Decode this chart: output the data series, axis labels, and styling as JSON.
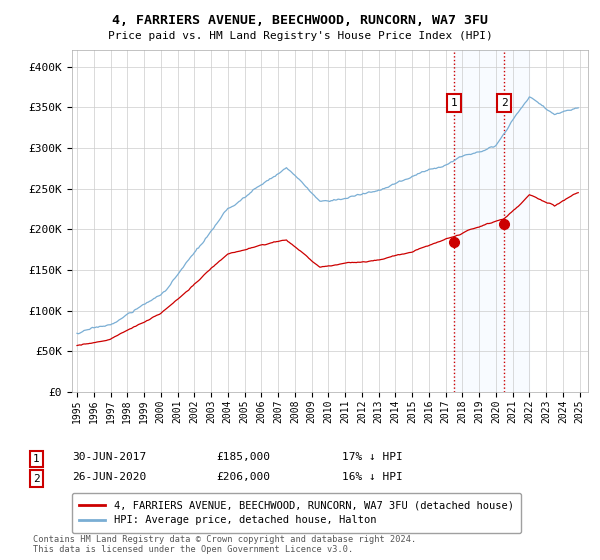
{
  "title": "4, FARRIERS AVENUE, BEECHWOOD, RUNCORN, WA7 3FU",
  "subtitle": "Price paid vs. HM Land Registry's House Price Index (HPI)",
  "legend_line1": "4, FARRIERS AVENUE, BEECHWOOD, RUNCORN, WA7 3FU (detached house)",
  "legend_line2": "HPI: Average price, detached house, Halton",
  "transaction1_date": "30-JUN-2017",
  "transaction1_price": "£185,000",
  "transaction1_hpi": "17% ↓ HPI",
  "transaction2_date": "26-JUN-2020",
  "transaction2_price": "£206,000",
  "transaction2_hpi": "16% ↓ HPI",
  "footer": "Contains HM Land Registry data © Crown copyright and database right 2024.\nThis data is licensed under the Open Government Licence v3.0.",
  "ylim_min": 0,
  "ylim_max": 420000,
  "yticks": [
    0,
    50000,
    100000,
    150000,
    200000,
    250000,
    300000,
    350000,
    400000
  ],
  "ytick_labels": [
    "£0",
    "£50K",
    "£100K",
    "£150K",
    "£200K",
    "£250K",
    "£300K",
    "£350K",
    "£400K"
  ],
  "hpi_color": "#7aaed4",
  "price_color": "#cc0000",
  "vline_color": "#cc0000",
  "highlight_color": "#ddeeff",
  "background_color": "#ffffff",
  "grid_color": "#cccccc",
  "box_color": "#cc0000",
  "t1_year": 2017.5,
  "t2_year": 2020.5,
  "t1_price": 185000,
  "t2_price": 206000
}
